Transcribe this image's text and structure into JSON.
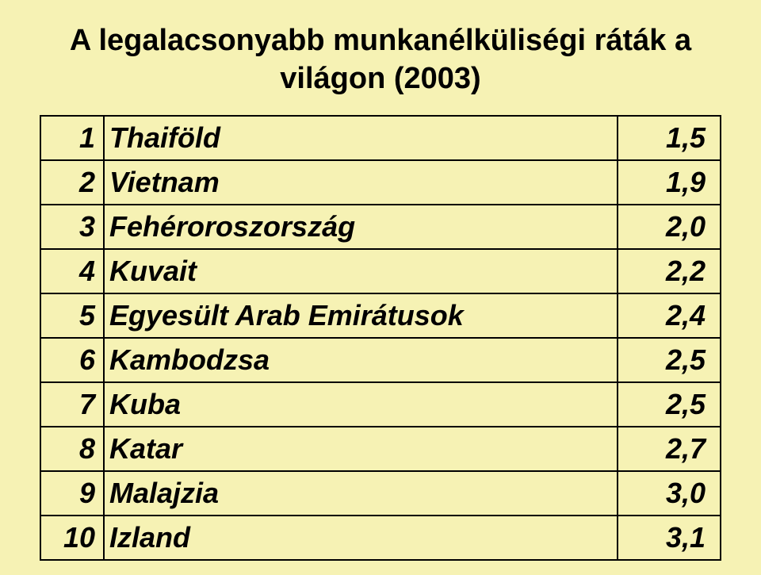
{
  "title_line1": "A legalacsonyabb munkanélküliségi ráták a",
  "title_line2": "világon (2003)",
  "table": {
    "type": "table",
    "background_color": "#f6f2b4",
    "border_color": "#000000",
    "font_family": "Arial",
    "font_style": "bold italic",
    "cell_fontsize": 36,
    "title_fontsize": 38,
    "columns": [
      "rank",
      "country",
      "value"
    ],
    "col_align": [
      "right",
      "left",
      "right"
    ],
    "rows": [
      {
        "rank": "1",
        "country": "Thaiföld",
        "value": "1,5"
      },
      {
        "rank": "2",
        "country": "Vietnam",
        "value": "1,9"
      },
      {
        "rank": "3",
        "country": "Fehéroroszország",
        "value": "2,0"
      },
      {
        "rank": "4",
        "country": "Kuvait",
        "value": "2,2"
      },
      {
        "rank": "5",
        "country": "Egyesült Arab Emirátusok",
        "value": "2,4"
      },
      {
        "rank": "6",
        "country": "Kambodzsa",
        "value": "2,5"
      },
      {
        "rank": "7",
        "country": "Kuba",
        "value": "2,5"
      },
      {
        "rank": "8",
        "country": "Katar",
        "value": "2,7"
      },
      {
        "rank": "9",
        "country": "Malajzia",
        "value": "3,0"
      },
      {
        "rank": "10",
        "country": "Izland",
        "value": "3,1"
      }
    ]
  }
}
